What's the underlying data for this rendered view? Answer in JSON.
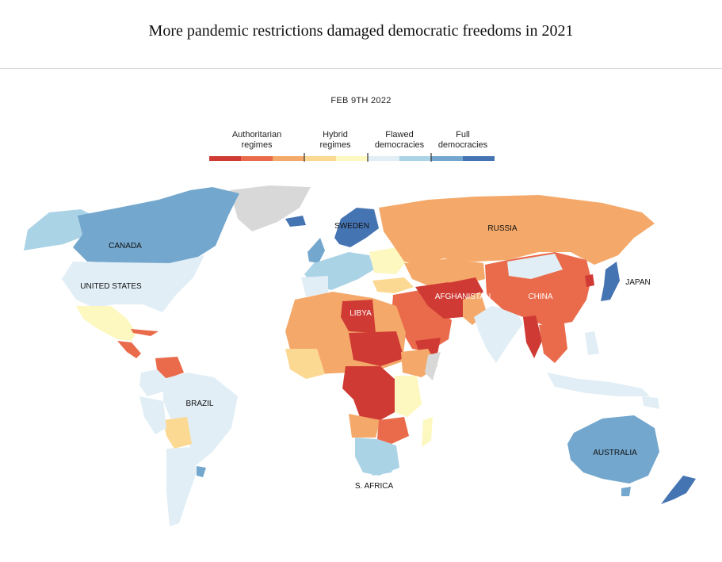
{
  "header": {
    "title": "More pandemic restrictions damaged democratic freedoms in 2021",
    "date": "FEB 9TH 2022"
  },
  "legend": {
    "categories": [
      {
        "line1": "Authoritarian",
        "line2": "regimes"
      },
      {
        "line1": "Hybrid",
        "line2": "regimes"
      },
      {
        "line1": "Flawed",
        "line2": "democracies"
      },
      {
        "line1": "Full",
        "line2": "democracies"
      }
    ],
    "swatches": [
      "#d03a34",
      "#ea6b4b",
      "#f4a96a",
      "#fcd992",
      "#fdf8c0",
      "#e1eef6",
      "#abd3e6",
      "#73a7cd",
      "#4574b3"
    ]
  },
  "map_labels": {
    "canada": "CANADA",
    "united_states": "UNITED STATES",
    "brazil": "BRAZIL",
    "sweden": "SWEDEN",
    "russia": "RUSSIA",
    "libya": "LIBYA",
    "afghanistan": "AFGHANISTAN",
    "china": "CHINA",
    "japan": "JAPAN",
    "australia": "AUSTRALIA",
    "south_africa": "S. AFRICA"
  },
  "colors": {
    "no_data": "#d8d8d8",
    "ocean": "#ffffff"
  }
}
